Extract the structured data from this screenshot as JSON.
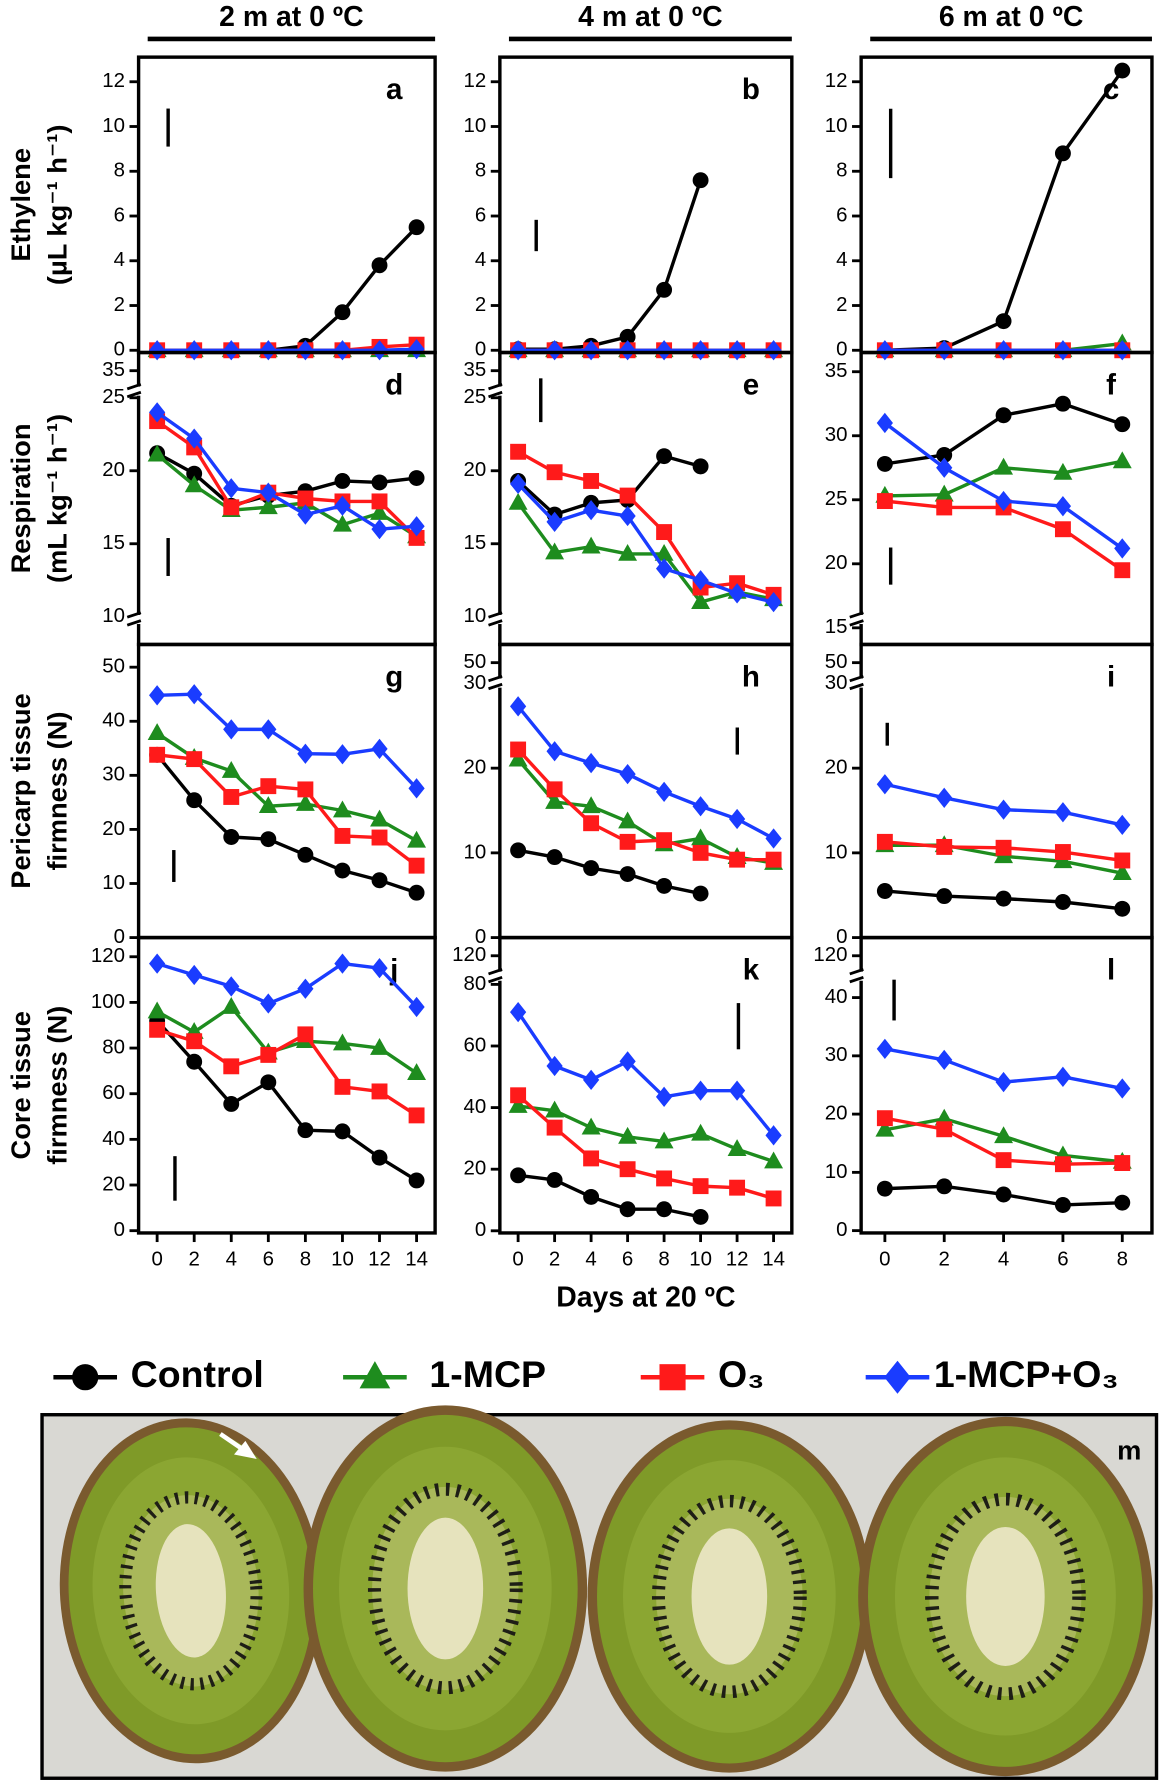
{
  "photo_label": "m",
  "chart_data": [
    {
      "type": "line",
      "title": "a",
      "column_title": "2 m at 0 ºC",
      "ylabel": [
        "Ethylene",
        "(µL kg⁻¹ h⁻¹)"
      ],
      "x": [
        0,
        2,
        4,
        6,
        8,
        10,
        12,
        14
      ],
      "xlim": [
        -1,
        15
      ],
      "ylim": [
        -0.1,
        13.1
      ],
      "yticks": [
        0,
        2,
        4,
        6,
        8,
        10,
        12
      ],
      "lsd": 1.7,
      "series": [
        {
          "name": "Control",
          "color": "#000000",
          "marker": "circle",
          "values": [
            0,
            0,
            0,
            0,
            0.2,
            1.7,
            3.8,
            5.5
          ]
        },
        {
          "name": "1-MCP",
          "color": "#1e8c1e",
          "marker": "triangle",
          "values": [
            0,
            0,
            0,
            0,
            0,
            0,
            0,
            0
          ]
        },
        {
          "name": "O₃",
          "color": "#ff1a1a",
          "marker": "square",
          "values": [
            0,
            0,
            0,
            0,
            0,
            0,
            0.15,
            0.25
          ]
        },
        {
          "name": "1-MCP+O₃",
          "color": "#1a3cff",
          "marker": "diamond",
          "values": [
            0,
            0,
            0,
            0,
            0,
            0,
            0,
            0.05
          ]
        }
      ]
    },
    {
      "type": "line",
      "title": "b",
      "column_title": "4 m at 0 ºC",
      "x": [
        0,
        2,
        4,
        6,
        8,
        10,
        12,
        14
      ],
      "xlim": [
        -1,
        15
      ],
      "ylim": [
        -0.1,
        13.1
      ],
      "yticks": [
        0,
        2,
        4,
        6,
        8,
        10,
        12
      ],
      "lsd": 1.4,
      "series": [
        {
          "name": "Control",
          "color": "#000000",
          "marker": "circle",
          "values": [
            0.05,
            0.05,
            0.2,
            0.6,
            2.7,
            7.6,
            null,
            null
          ]
        },
        {
          "name": "1-MCP",
          "color": "#1e8c1e",
          "marker": "triangle",
          "values": [
            0,
            0,
            0,
            0,
            0,
            0,
            0,
            0
          ]
        },
        {
          "name": "O₃",
          "color": "#ff1a1a",
          "marker": "square",
          "values": [
            0,
            0,
            0,
            0,
            0,
            0,
            0,
            0
          ]
        },
        {
          "name": "1-MCP+O₃",
          "color": "#1a3cff",
          "marker": "diamond",
          "values": [
            0,
            0,
            0,
            0,
            0,
            0,
            0,
            0
          ]
        }
      ]
    },
    {
      "type": "line",
      "title": "c",
      "column_title": "6 m at 0 ºC",
      "x": [
        0,
        2,
        4,
        6,
        8
      ],
      "xlim": [
        -0.8,
        9
      ],
      "ylim": [
        -0.1,
        13.1
      ],
      "yticks": [
        0,
        2,
        4,
        6,
        8,
        10,
        12
      ],
      "lsd": 3.1,
      "series": [
        {
          "name": "Control",
          "color": "#000000",
          "marker": "circle",
          "values": [
            0,
            0.1,
            1.3,
            8.8,
            12.5
          ]
        },
        {
          "name": "1-MCP",
          "color": "#1e8c1e",
          "marker": "triangle",
          "values": [
            0,
            0,
            0,
            0,
            0.3
          ]
        },
        {
          "name": "O₃",
          "color": "#ff1a1a",
          "marker": "square",
          "values": [
            0,
            0,
            0,
            0,
            0
          ]
        },
        {
          "name": "1-MCP+O₃",
          "color": "#1a3cff",
          "marker": "diamond",
          "values": [
            0,
            0,
            0,
            0,
            0
          ]
        }
      ]
    },
    {
      "type": "line",
      "title": "d",
      "ylabel": [
        "Respiration",
        "(mL kg⁻¹ h⁻¹)"
      ],
      "x": [
        0,
        2,
        4,
        6,
        8,
        10,
        12,
        14
      ],
      "xlim": [
        -1,
        15
      ],
      "ylim": [
        8.1,
        28.1
      ],
      "yticks": [
        10,
        15,
        20,
        25
      ],
      "yticks_above_break": [
        35
      ],
      "lsd": 2.6,
      "series": [
        {
          "name": "Control",
          "color": "#000000",
          "marker": "circle",
          "values": [
            21.2,
            19.8,
            17.6,
            18.3,
            18.6,
            19.3,
            19.2,
            19.5
          ]
        },
        {
          "name": "1-MCP",
          "color": "#1e8c1e",
          "marker": "triangle",
          "values": [
            21.1,
            19.0,
            17.3,
            17.5,
            17.8,
            16.3,
            17.1,
            15.5
          ]
        },
        {
          "name": "O₃",
          "color": "#ff1a1a",
          "marker": "square",
          "values": [
            23.4,
            21.6,
            17.5,
            18.5,
            18.1,
            17.9,
            17.9,
            15.4
          ]
        },
        {
          "name": "1-MCP+O₃",
          "color": "#1a3cff",
          "marker": "diamond",
          "values": [
            24.0,
            22.2,
            18.8,
            18.5,
            17.0,
            17.6,
            16.0,
            16.2
          ]
        }
      ]
    },
    {
      "type": "line",
      "title": "e",
      "x": [
        0,
        2,
        4,
        6,
        8,
        10,
        12,
        14
      ],
      "xlim": [
        -1,
        15
      ],
      "ylim": [
        8.1,
        28.1
      ],
      "yticks": [
        10,
        15,
        20,
        25
      ],
      "yticks_above_break": [
        35
      ],
      "lsd": 3.0,
      "series": [
        {
          "name": "Control",
          "color": "#000000",
          "marker": "circle",
          "values": [
            19.3,
            17.0,
            17.8,
            18.0,
            21.0,
            20.3,
            null,
            null
          ]
        },
        {
          "name": "1-MCP",
          "color": "#1e8c1e",
          "marker": "triangle",
          "values": [
            17.8,
            14.4,
            14.8,
            14.3,
            14.3,
            11.0,
            11.7,
            11.2
          ]
        },
        {
          "name": "O₃",
          "color": "#ff1a1a",
          "marker": "square",
          "values": [
            21.3,
            19.9,
            19.3,
            18.3,
            15.8,
            12.0,
            12.3,
            11.5
          ]
        },
        {
          "name": "1-MCP+O₃",
          "color": "#1a3cff",
          "marker": "diamond",
          "values": [
            19.1,
            16.5,
            17.3,
            16.9,
            13.3,
            12.5,
            11.6,
            11.0
          ]
        }
      ]
    },
    {
      "type": "line",
      "title": "f",
      "x": [
        0,
        2,
        4,
        6,
        8
      ],
      "xlim": [
        -0.8,
        9
      ],
      "ylim": [
        13.7,
        36.5
      ],
      "yticks": [
        15,
        20,
        25,
        30,
        35
      ],
      "lsd": 2.9,
      "series": [
        {
          "name": "Control",
          "color": "#000000",
          "marker": "circle",
          "values": [
            27.8,
            28.5,
            31.6,
            32.5,
            30.9
          ]
        },
        {
          "name": "1-MCP",
          "color": "#1e8c1e",
          "marker": "triangle",
          "values": [
            25.3,
            25.4,
            27.5,
            27.1,
            28.0
          ]
        },
        {
          "name": "O₃",
          "color": "#ff1a1a",
          "marker": "square",
          "values": [
            24.9,
            24.4,
            24.4,
            22.7,
            19.5
          ]
        },
        {
          "name": "1-MCP+O₃",
          "color": "#1a3cff",
          "marker": "diamond",
          "values": [
            31.0,
            27.5,
            24.9,
            24.5,
            21.2
          ]
        }
      ]
    },
    {
      "type": "line",
      "title": "g",
      "ylabel": [
        "Pericarp tissue",
        "firmness (N)"
      ],
      "x": [
        0,
        2,
        4,
        6,
        8,
        10,
        12,
        14
      ],
      "xlim": [
        -1,
        15
      ],
      "ylim": [
        0,
        54.2
      ],
      "yticks": [
        0,
        10,
        20,
        30,
        40,
        50
      ],
      "lsd": 5.9,
      "series": [
        {
          "name": "Control",
          "color": "#000000",
          "marker": "circle",
          "values": [
            33.8,
            25.4,
            18.6,
            18.2,
            15.3,
            12.4,
            10.6,
            8.3
          ]
        },
        {
          "name": "1-MCP",
          "color": "#1e8c1e",
          "marker": "triangle",
          "values": [
            37.8,
            33.2,
            30.8,
            24.3,
            24.7,
            23.5,
            21.8,
            17.9
          ]
        },
        {
          "name": "O₃",
          "color": "#ff1a1a",
          "marker": "square",
          "values": [
            33.8,
            33.0,
            26.0,
            28.0,
            27.4,
            18.8,
            18.5,
            13.3
          ]
        },
        {
          "name": "1-MCP+O₃",
          "color": "#1a3cff",
          "marker": "diamond",
          "values": [
            44.8,
            45.0,
            38.5,
            38.5,
            34.0,
            33.9,
            34.9,
            27.6
          ]
        }
      ]
    },
    {
      "type": "line",
      "title": "h",
      "x": [
        0,
        2,
        4,
        6,
        8,
        10,
        12,
        14
      ],
      "xlim": [
        -1,
        15
      ],
      "ylim": [
        0,
        34.6
      ],
      "yticks": [
        0,
        10,
        20,
        30
      ],
      "yticks_above_break": [
        50
      ],
      "lsd": 3.2,
      "series": [
        {
          "name": "Control",
          "color": "#000000",
          "marker": "circle",
          "values": [
            10.3,
            9.5,
            8.2,
            7.5,
            6.1,
            5.2,
            null,
            null
          ]
        },
        {
          "name": "1-MCP",
          "color": "#1e8c1e",
          "marker": "triangle",
          "values": [
            21.0,
            16.0,
            15.5,
            13.7,
            11.0,
            11.7,
            9.5,
            8.8
          ]
        },
        {
          "name": "O₃",
          "color": "#ff1a1a",
          "marker": "square",
          "values": [
            22.2,
            17.5,
            13.5,
            11.3,
            11.5,
            10.0,
            9.2,
            9.2
          ]
        },
        {
          "name": "1-MCP+O₃",
          "color": "#1a3cff",
          "marker": "diamond",
          "values": [
            27.3,
            22.0,
            20.6,
            19.3,
            17.2,
            15.5,
            14.0,
            11.7
          ]
        }
      ]
    },
    {
      "type": "line",
      "title": "i",
      "x": [
        0,
        2,
        4,
        6,
        8
      ],
      "xlim": [
        -0.8,
        9
      ],
      "ylim": [
        0,
        34.6
      ],
      "yticks": [
        0,
        10,
        20,
        30
      ],
      "yticks_above_break": [
        50
      ],
      "lsd": 2.7,
      "series": [
        {
          "name": "Control",
          "color": "#000000",
          "marker": "circle",
          "values": [
            5.5,
            4.9,
            4.6,
            4.2,
            3.4
          ]
        },
        {
          "name": "1-MCP",
          "color": "#1e8c1e",
          "marker": "triangle",
          "values": [
            10.9,
            10.9,
            9.6,
            9.0,
            7.6
          ]
        },
        {
          "name": "O₃",
          "color": "#ff1a1a",
          "marker": "square",
          "values": [
            11.3,
            10.7,
            10.6,
            10.1,
            9.1
          ]
        },
        {
          "name": "1-MCP+O₃",
          "color": "#1a3cff",
          "marker": "diamond",
          "values": [
            18.1,
            16.5,
            15.1,
            14.8,
            13.3
          ]
        }
      ]
    },
    {
      "type": "line",
      "title": "j",
      "ylabel": [
        "Core tissue",
        "firmness (N)"
      ],
      "x": [
        0,
        2,
        4,
        6,
        8,
        10,
        12,
        14
      ],
      "xlim": [
        -1,
        15
      ],
      "ylim": [
        -1,
        128.4
      ],
      "yticks": [
        0,
        20,
        40,
        60,
        80,
        100,
        120
      ],
      "xticks": [
        0,
        2,
        4,
        6,
        8,
        10,
        12,
        14
      ],
      "lsd": 19.5,
      "series": [
        {
          "name": "Control",
          "color": "#000000",
          "marker": "circle",
          "values": [
            92,
            74,
            55.5,
            65,
            44,
            43.5,
            32,
            22
          ]
        },
        {
          "name": "1-MCP",
          "color": "#1e8c1e",
          "marker": "triangle",
          "values": [
            96,
            87,
            98,
            78,
            83,
            82,
            80,
            69
          ]
        },
        {
          "name": "O₃",
          "color": "#ff1a1a",
          "marker": "square",
          "values": [
            88,
            83,
            72,
            77,
            86,
            63,
            61,
            50.5
          ]
        },
        {
          "name": "1-MCP+O₃",
          "color": "#1a3cff",
          "marker": "diamond",
          "values": [
            117,
            112,
            107,
            99.5,
            106,
            117,
            115,
            98
          ]
        }
      ]
    },
    {
      "type": "line",
      "title": "k",
      "xlabel": "Days at 20 ºC",
      "x": [
        0,
        2,
        4,
        6,
        8,
        10,
        12,
        14
      ],
      "xlim": [
        -1,
        15
      ],
      "ylim": [
        -0.7,
        95.2
      ],
      "yticks": [
        0,
        20,
        40,
        60,
        80
      ],
      "yticks_above_break": [
        120
      ],
      "xticks": [
        0,
        2,
        4,
        6,
        8,
        10,
        12,
        14
      ],
      "lsd": 15,
      "series": [
        {
          "name": "Control",
          "color": "#000000",
          "marker": "circle",
          "values": [
            18,
            16.5,
            11,
            7,
            7,
            4.5,
            null,
            null
          ]
        },
        {
          "name": "1-MCP",
          "color": "#1e8c1e",
          "marker": "triangle",
          "values": [
            40.5,
            39,
            33.5,
            30.5,
            29,
            31.5,
            26.5,
            22.5
          ]
        },
        {
          "name": "O₃",
          "color": "#ff1a1a",
          "marker": "square",
          "values": [
            44,
            33.5,
            23.5,
            20,
            17,
            14.5,
            14,
            10.5
          ]
        },
        {
          "name": "1-MCP+O₃",
          "color": "#1a3cff",
          "marker": "diamond",
          "values": [
            71,
            53.5,
            49,
            55,
            43.5,
            45.5,
            45.5,
            31
          ]
        }
      ]
    },
    {
      "type": "line",
      "title": "l",
      "x": [
        0,
        2,
        4,
        6,
        8
      ],
      "xlim": [
        -0.8,
        9
      ],
      "ylim": [
        -0.4,
        50.3
      ],
      "yticks": [
        0,
        10,
        20,
        30,
        40
      ],
      "yticks_above_break": [
        120
      ],
      "xticks": [
        0,
        2,
        4,
        6,
        8
      ],
      "lsd": 7,
      "series": [
        {
          "name": "Control",
          "color": "#000000",
          "marker": "circle",
          "values": [
            7.2,
            7.6,
            6.2,
            4.4,
            4.8
          ]
        },
        {
          "name": "1-MCP",
          "color": "#1e8c1e",
          "marker": "triangle",
          "values": [
            17.3,
            19.2,
            16.2,
            12.9,
            11.8
          ]
        },
        {
          "name": "O₃",
          "color": "#ff1a1a",
          "marker": "square",
          "values": [
            19.3,
            17.4,
            12.1,
            11.4,
            11.6
          ]
        },
        {
          "name": "1-MCP+O₃",
          "color": "#1a3cff",
          "marker": "diamond",
          "values": [
            31.2,
            29.3,
            25.5,
            26.4,
            24.4
          ]
        }
      ]
    }
  ]
}
